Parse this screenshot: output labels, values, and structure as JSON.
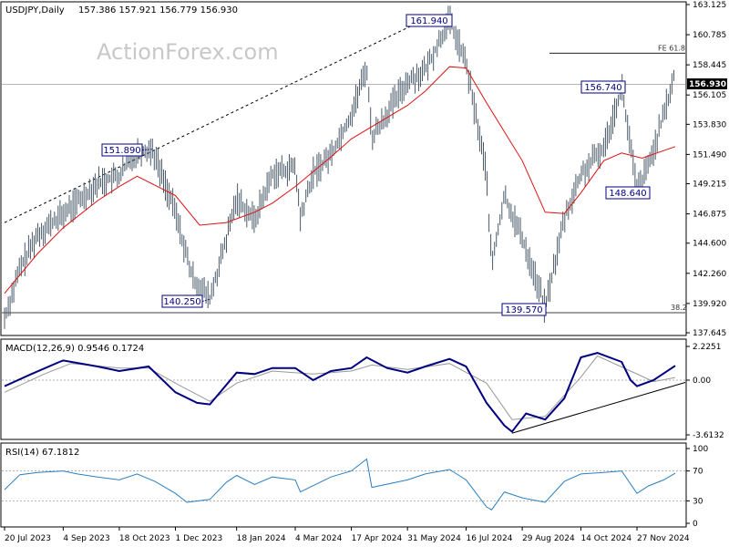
{
  "watermark": "ActionForex.com",
  "chart_data": [
    {
      "type": "candlestick",
      "title": "USDJPY,Daily",
      "ohlc_readout": "157.386 157.921 156.779 156.930",
      "last_price": "156.930",
      "ylim": [
        137.645,
        163.125
      ],
      "y_ticks": [
        "163.125",
        "160.785",
        "158.445",
        "156.105",
        "153.830",
        "151.490",
        "149.215",
        "146.875",
        "144.600",
        "142.260",
        "139.920",
        "137.645"
      ],
      "x_ticks": [
        "20 Jul 2023",
        "4 Sep 2023",
        "18 Oct 2023",
        "1 Dec 2023",
        "18 Jan 2024",
        "4 Mar 2024",
        "17 Apr 2024",
        "31 May 2024",
        "16 Jul 2024",
        "29 Aug 2024",
        "14 Oct 2024",
        "27 Nov 2024"
      ],
      "price_path": [
        [
          "20 Jul 2023",
          138.8
        ],
        [
          "1 Aug 2023",
          142.6
        ],
        [
          "15 Aug 2023",
          145.3
        ],
        [
          "1 Sep 2023",
          146.6
        ],
        [
          "15 Sep 2023",
          147.8
        ],
        [
          "1 Oct 2023",
          149.3
        ],
        [
          "18 Oct 2023",
          149.8
        ],
        [
          "31 Oct 2023",
          151.7
        ],
        [
          "13 Nov 2023",
          151.89
        ],
        [
          "1 Dec 2023",
          147.0
        ],
        [
          "14 Dec 2023",
          142.0
        ],
        [
          "28 Dec 2023",
          140.25
        ],
        [
          "10 Jan 2024",
          144.9
        ],
        [
          "18 Jan 2024",
          148.1
        ],
        [
          "1 Feb 2024",
          146.4
        ],
        [
          "15 Feb 2024",
          150.0
        ],
        [
          "4 Mar 2024",
          150.5
        ],
        [
          "8 Mar 2024",
          146.5
        ],
        [
          "18 Mar 2024",
          150.0
        ],
        [
          "1 Apr 2024",
          151.5
        ],
        [
          "17 Apr 2024",
          154.6
        ],
        [
          "29 Apr 2024",
          158.3
        ],
        [
          "3 May 2024",
          152.8
        ],
        [
          "31 May 2024",
          157.2
        ],
        [
          "14 Jun 2024",
          158.0
        ],
        [
          "3 Jul 2024",
          161.94
        ],
        [
          "16 Jul 2024",
          158.5
        ],
        [
          "1 Aug 2024",
          150.0
        ],
        [
          "5 Aug 2024",
          142.8
        ],
        [
          "15 Aug 2024",
          148.3
        ],
        [
          "29 Aug 2024",
          145.0
        ],
        [
          "16 Sep 2024",
          139.57
        ],
        [
          "1 Oct 2024",
          146.5
        ],
        [
          "14 Oct 2024",
          149.9
        ],
        [
          "1 Nov 2024",
          152.0
        ],
        [
          "15 Nov 2024",
          156.74
        ],
        [
          "27 Nov 2024",
          148.64
        ],
        [
          "6 Dec 2024",
          150.6
        ],
        [
          "18 Dec 2024",
          154.5
        ],
        [
          "27 Dec 2024",
          157.9
        ]
      ],
      "moving_average": [
        [
          "20 Jul 2023",
          140.7
        ],
        [
          "15 Aug 2023",
          143.8
        ],
        [
          "4 Sep 2023",
          145.8
        ],
        [
          "1 Oct 2023",
          147.9
        ],
        [
          "18 Oct 2023",
          149.0
        ],
        [
          "1 Nov 2023",
          149.8
        ],
        [
          "1 Dec 2023",
          148.3
        ],
        [
          "20 Dec 2023",
          146.0
        ],
        [
          "10 Jan 2024",
          146.2
        ],
        [
          "1 Feb 2024",
          147.0
        ],
        [
          "15 Feb 2024",
          147.7
        ],
        [
          "4 Mar 2024",
          149.0
        ],
        [
          "1 Apr 2024",
          151.3
        ],
        [
          "17 Apr 2024",
          152.7
        ],
        [
          "31 May 2024",
          155.3
        ],
        [
          "14 Jun 2024",
          156.4
        ],
        [
          "3 Jul 2024",
          158.3
        ],
        [
          "16 Jul 2024",
          158.2
        ],
        [
          "1 Aug 2024",
          155.5
        ],
        [
          "29 Aug 2024",
          151.0
        ],
        [
          "16 Sep 2024",
          147.0
        ],
        [
          "1 Oct 2024",
          146.9
        ],
        [
          "14 Oct 2024",
          148.5
        ],
        [
          "1 Nov 2024",
          151.0
        ],
        [
          "15 Nov 2024",
          151.6
        ],
        [
          "1 Dec 2024",
          151.2
        ],
        [
          "27 Dec 2024",
          152.1
        ]
      ],
      "callouts": [
        {
          "label": "161.940",
          "date": "3 Jul 2024",
          "value": 161.94
        },
        {
          "label": "151.890",
          "date": "13 Nov 2023",
          "value": 151.89
        },
        {
          "label": "140.250",
          "date": "28 Dec 2023",
          "value": 140.25
        },
        {
          "label": "156.740",
          "date": "15 Nov 2024",
          "value": 156.74
        },
        {
          "label": "148.640",
          "date": "27 Nov 2024",
          "value": 148.64
        },
        {
          "label": "139.570",
          "date": "16 Sep 2024",
          "value": 139.57
        }
      ],
      "levels": [
        {
          "label": "FE 61.8",
          "value": 159.35
        },
        {
          "label": "38.2",
          "value": 139.2
        }
      ],
      "trendline": [
        [
          "20 Jul 2023",
          146.2
        ],
        [
          "12 Jun 2024",
          161.9
        ]
      ],
      "colors": {
        "price": "#4a5a6a",
        "moving_average": "#dd1111",
        "callout_border": "#000080",
        "level": "#000000"
      }
    },
    {
      "type": "line",
      "title": "MACD(12,26,9) 0.9546 0.1724",
      "ylim": [
        -3.6132,
        2.2251
      ],
      "y_ticks": [
        "2.2251",
        "0.00",
        "-3.6132"
      ],
      "macd": [
        [
          "20 Jul 2023",
          -0.4
        ],
        [
          "10 Aug 2023",
          0.4
        ],
        [
          "1 Sep 2023",
          1.2
        ],
        [
          "4 Sep 2023",
          1.3
        ],
        [
          "1 Oct 2023",
          0.9
        ],
        [
          "18 Oct 2023",
          0.6
        ],
        [
          "10 Nov 2023",
          0.9
        ],
        [
          "1 Dec 2023",
          -0.8
        ],
        [
          "18 Dec 2023",
          -1.5
        ],
        [
          "28 Dec 2023",
          -1.6
        ],
        [
          "18 Jan 2024",
          0.5
        ],
        [
          "1 Feb 2024",
          0.4
        ],
        [
          "15 Feb 2024",
          0.8
        ],
        [
          "4 Mar 2024",
          0.8
        ],
        [
          "18 Mar 2024",
          0.0
        ],
        [
          "1 Apr 2024",
          0.6
        ],
        [
          "17 Apr 2024",
          0.8
        ],
        [
          "29 Apr 2024",
          1.5
        ],
        [
          "15 May 2024",
          0.8
        ],
        [
          "31 May 2024",
          0.5
        ],
        [
          "14 Jun 2024",
          0.9
        ],
        [
          "3 Jul 2024",
          1.4
        ],
        [
          "16 Jul 2024",
          0.9
        ],
        [
          "1 Aug 2024",
          -1.5
        ],
        [
          "15 Aug 2024",
          -3.0
        ],
        [
          "21 Aug 2024",
          -3.4
        ],
        [
          "1 Sep 2024",
          -2.2
        ],
        [
          "16 Sep 2024",
          -2.6
        ],
        [
          "1 Oct 2024",
          -1.2
        ],
        [
          "14 Oct 2024",
          1.5
        ],
        [
          "27 Oct 2024",
          1.8
        ],
        [
          "15 Nov 2024",
          1.2
        ],
        [
          "22 Nov 2024",
          0.0
        ],
        [
          "27 Nov 2024",
          -0.4
        ],
        [
          "10 Dec 2024",
          0.0
        ],
        [
          "27 Dec 2024",
          0.95
        ]
      ],
      "signal": [
        [
          "20 Jul 2023",
          -0.8
        ],
        [
          "20 Aug 2023",
          0.4
        ],
        [
          "10 Sep 2023",
          1.1
        ],
        [
          "18 Oct 2023",
          0.8
        ],
        [
          "10 Nov 2023",
          0.8
        ],
        [
          "1 Dec 2023",
          -0.2
        ],
        [
          "28 Dec 2023",
          -1.4
        ],
        [
          "18 Jan 2024",
          -0.2
        ],
        [
          "15 Feb 2024",
          0.6
        ],
        [
          "18 Mar 2024",
          0.4
        ],
        [
          "17 Apr 2024",
          0.6
        ],
        [
          "3 May 2024",
          1.0
        ],
        [
          "31 May 2024",
          0.7
        ],
        [
          "3 Jul 2024",
          1.1
        ],
        [
          "1 Aug 2024",
          -0.2
        ],
        [
          "21 Aug 2024",
          -2.6
        ],
        [
          "16 Sep 2024",
          -2.4
        ],
        [
          "14 Oct 2024",
          0.2
        ],
        [
          "27 Oct 2024",
          1.6
        ],
        [
          "22 Nov 2024",
          0.6
        ],
        [
          "10 Dec 2024",
          -0.1
        ],
        [
          "27 Dec 2024",
          0.17
        ]
      ],
      "trendline": [
        [
          "21 Aug 2024",
          -3.5
        ],
        [
          "27 Dec 2024",
          -0.3
        ]
      ],
      "colors": {
        "macd": "#000080",
        "signal": "#999999"
      }
    },
    {
      "type": "line",
      "title": "RSI(14) 67.1812",
      "ylim": [
        0,
        100
      ],
      "y_ticks": [
        {
          "label": "100",
          "value": 100
        },
        {
          "label": "70",
          "value": 70
        },
        {
          "label": "30",
          "value": 30
        },
        {
          "label": "0",
          "value": 0
        }
      ],
      "rsi": [
        [
          "20 Jul 2023",
          45
        ],
        [
          "1 Aug 2023",
          65
        ],
        [
          "15 Aug 2023",
          68
        ],
        [
          "4 Sep 2023",
          70
        ],
        [
          "15 Sep 2023",
          66
        ],
        [
          "1 Oct 2023",
          62
        ],
        [
          "18 Oct 2023",
          58
        ],
        [
          "1 Nov 2023",
          66
        ],
        [
          "15 Nov 2023",
          56
        ],
        [
          "1 Dec 2023",
          40
        ],
        [
          "10 Dec 2023",
          28
        ],
        [
          "28 Dec 2023",
          32
        ],
        [
          "10 Jan 2024",
          55
        ],
        [
          "18 Jan 2024",
          64
        ],
        [
          "1 Feb 2024",
          52
        ],
        [
          "15 Feb 2024",
          62
        ],
        [
          "4 Mar 2024",
          58
        ],
        [
          "8 Mar 2024",
          42
        ],
        [
          "1 Apr 2024",
          62
        ],
        [
          "17 Apr 2024",
          70
        ],
        [
          "29 Apr 2024",
          86
        ],
        [
          "3 May 2024",
          48
        ],
        [
          "31 May 2024",
          58
        ],
        [
          "14 Jun 2024",
          66
        ],
        [
          "3 Jul 2024",
          72
        ],
        [
          "16 Jul 2024",
          58
        ],
        [
          "1 Aug 2024",
          22
        ],
        [
          "5 Aug 2024",
          18
        ],
        [
          "15 Aug 2024",
          42
        ],
        [
          "29 Aug 2024",
          34
        ],
        [
          "16 Sep 2024",
          28
        ],
        [
          "1 Oct 2024",
          56
        ],
        [
          "14 Oct 2024",
          66
        ],
        [
          "1 Nov 2024",
          68
        ],
        [
          "15 Nov 2024",
          70
        ],
        [
          "27 Nov 2024",
          40
        ],
        [
          "6 Dec 2024",
          50
        ],
        [
          "18 Dec 2024",
          58
        ],
        [
          "27 Dec 2024",
          67
        ]
      ],
      "colors": {
        "rsi": "#2a7fc0"
      }
    }
  ]
}
